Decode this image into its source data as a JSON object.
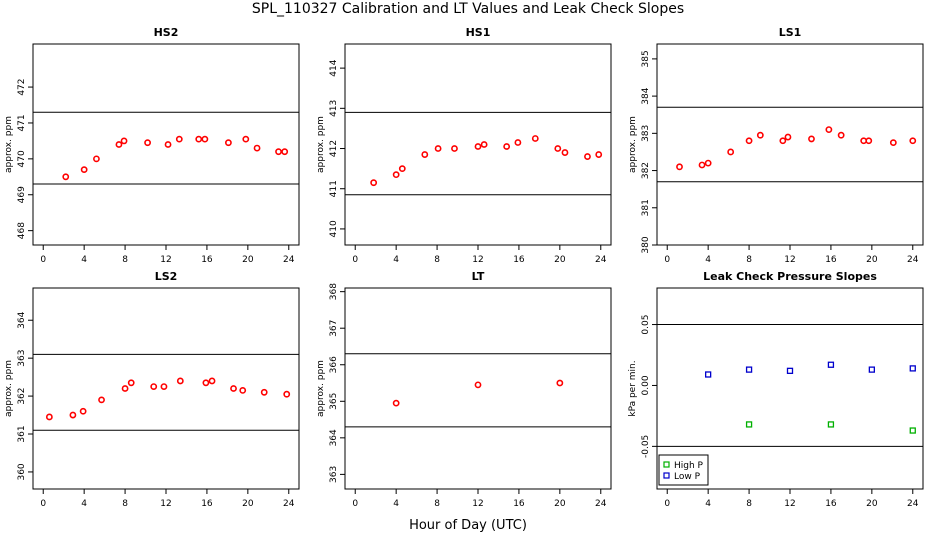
{
  "figure": {
    "title": "SPL_110327  Calibration and LT Values and Leak Check Slopes",
    "xlabel": "Hour of Day (UTC)"
  },
  "chart_data": [
    {
      "type": "scatter",
      "title": "HS2",
      "ylabel": "approx. ppm",
      "xlim": [
        -1,
        25
      ],
      "ylim": [
        467.6,
        473.2
      ],
      "xticks": [
        0,
        4,
        8,
        12,
        16,
        20,
        24
      ],
      "yticks": [
        468,
        469,
        470,
        471,
        472
      ],
      "hlines": [
        469.3,
        471.3
      ],
      "point_color": "#ff0000",
      "series": [
        {
          "x": [
            2.2,
            4.0,
            5.2,
            7.4,
            7.9,
            10.2,
            12.2,
            13.3,
            15.2,
            15.8,
            18.1,
            19.8,
            20.9,
            23.0,
            23.6
          ],
          "y": [
            469.5,
            469.7,
            470.0,
            470.4,
            470.5,
            470.45,
            470.4,
            470.55,
            470.55,
            470.55,
            470.45,
            470.55,
            470.3,
            470.2,
            470.2
          ]
        }
      ]
    },
    {
      "type": "scatter",
      "title": "HS1",
      "ylabel": "approx. ppm",
      "xlim": [
        -1,
        25
      ],
      "ylim": [
        409.6,
        414.6
      ],
      "xticks": [
        0,
        4,
        8,
        12,
        16,
        20,
        24
      ],
      "yticks": [
        410,
        411,
        412,
        413,
        414
      ],
      "hlines": [
        410.85,
        412.9
      ],
      "point_color": "#ff0000",
      "series": [
        {
          "x": [
            1.8,
            4.0,
            4.6,
            6.8,
            8.1,
            9.7,
            12.0,
            12.6,
            14.8,
            15.9,
            17.6,
            19.8,
            20.5,
            22.7,
            23.8
          ],
          "y": [
            411.15,
            411.35,
            411.5,
            411.85,
            412.0,
            412.0,
            412.05,
            412.1,
            412.05,
            412.15,
            412.25,
            412.0,
            411.9,
            411.8,
            411.85
          ]
        }
      ]
    },
    {
      "type": "scatter",
      "title": "LS1",
      "ylabel": "approx. ppm",
      "xlim": [
        -1,
        25
      ],
      "ylim": [
        380,
        385.4
      ],
      "xticks": [
        0,
        4,
        8,
        12,
        16,
        20,
        24
      ],
      "yticks": [
        380,
        381,
        382,
        383,
        384,
        385
      ],
      "hlines": [
        381.7,
        383.7
      ],
      "point_color": "#ff0000",
      "series": [
        {
          "x": [
            1.2,
            3.4,
            4.0,
            6.2,
            8.0,
            9.1,
            11.3,
            11.8,
            14.1,
            15.8,
            17.0,
            19.2,
            19.7,
            22.1,
            24.0
          ],
          "y": [
            382.1,
            382.15,
            382.2,
            382.5,
            382.8,
            382.95,
            382.8,
            382.9,
            382.85,
            383.1,
            382.95,
            382.8,
            382.8,
            382.75,
            382.8
          ]
        }
      ]
    },
    {
      "type": "scatter",
      "title": "LS2",
      "ylabel": "approx. ppm",
      "xlim": [
        -1,
        25
      ],
      "ylim": [
        359.55,
        364.85
      ],
      "xticks": [
        0,
        4,
        8,
        12,
        16,
        20,
        24
      ],
      "yticks": [
        360,
        361,
        362,
        363,
        364
      ],
      "hlines": [
        361.1,
        363.1
      ],
      "point_color": "#ff0000",
      "series": [
        {
          "x": [
            0.6,
            2.9,
            3.9,
            5.7,
            8.0,
            8.6,
            10.8,
            11.8,
            13.4,
            15.9,
            16.5,
            18.6,
            19.5,
            21.6,
            23.8
          ],
          "y": [
            361.45,
            361.5,
            361.6,
            361.9,
            362.2,
            362.35,
            362.25,
            362.25,
            362.4,
            362.35,
            362.4,
            362.2,
            362.15,
            362.1,
            362.05
          ]
        }
      ]
    },
    {
      "type": "scatter",
      "title": "LT",
      "ylabel": "approx. ppm",
      "xlim": [
        -1,
        25
      ],
      "ylim": [
        362.6,
        368.1
      ],
      "xticks": [
        0,
        4,
        8,
        12,
        16,
        20,
        24
      ],
      "yticks": [
        363,
        364,
        365,
        366,
        367,
        368
      ],
      "hlines": [
        364.3,
        366.3
      ],
      "point_color": "#ff0000",
      "series": [
        {
          "x": [
            4.0,
            12.0,
            20.0
          ],
          "y": [
            364.95,
            365.45,
            365.5
          ]
        }
      ]
    },
    {
      "type": "scatter",
      "title": "Leak Check Pressure Slopes",
      "ylabel": "kPa per min.",
      "xlim": [
        -1,
        25
      ],
      "ylim": [
        -0.085,
        0.08
      ],
      "xticks": [
        0,
        4,
        8,
        12,
        16,
        20,
        24
      ],
      "yticks": [
        -0.05,
        0.0,
        0.05
      ],
      "ytick_labels": [
        "-0.05",
        "0.00",
        "0.05"
      ],
      "hlines": [
        -0.05,
        0.05
      ],
      "legend": "bottom-left",
      "series": [
        {
          "name": "High P",
          "color": "#00b000",
          "marker": "square",
          "x": [
            8.0,
            16.0,
            24.0
          ],
          "y": [
            -0.032,
            -0.032,
            -0.037
          ]
        },
        {
          "name": "Low P",
          "color": "#0000cc",
          "marker": "square",
          "x": [
            4.0,
            8.0,
            12.0,
            16.0,
            20.0,
            24.0
          ],
          "y": [
            0.009,
            0.013,
            0.012,
            0.017,
            0.013,
            0.014
          ]
        }
      ]
    }
  ]
}
